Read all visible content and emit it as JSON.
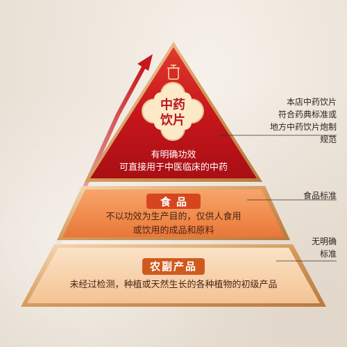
{
  "pyramid": {
    "top": {
      "title_line1": "中药",
      "title_line2": "饮片",
      "desc_line1": "有明确功效",
      "desc_line2": "可直接用于中医临床的中药"
    },
    "middle": {
      "label": "食品",
      "desc_line1": "不以功效为生产目的，仅供人食用",
      "desc_line2": "或饮用的成品和原料"
    },
    "bottom": {
      "label": "农副产品",
      "desc": "未经过检测，种植或天然生长的各种植物的初级产品"
    }
  },
  "annotations": {
    "top": [
      "本店中药饮片",
      "符合药典标准或",
      "地方中药饮片炮制规范"
    ],
    "middle": "食品标准",
    "bottom": [
      "无明确",
      "标准"
    ]
  },
  "colors": {
    "top_red": "#c8161d",
    "middle_orange": "#f08a4b",
    "bottom_peach": "#f6c9a0",
    "border_gold": "#d9a46a",
    "emblem_cream": "#fbe9c8"
  },
  "icons": [
    "up-arrow-icon",
    "vessel-icon",
    "emblem-icon"
  ]
}
